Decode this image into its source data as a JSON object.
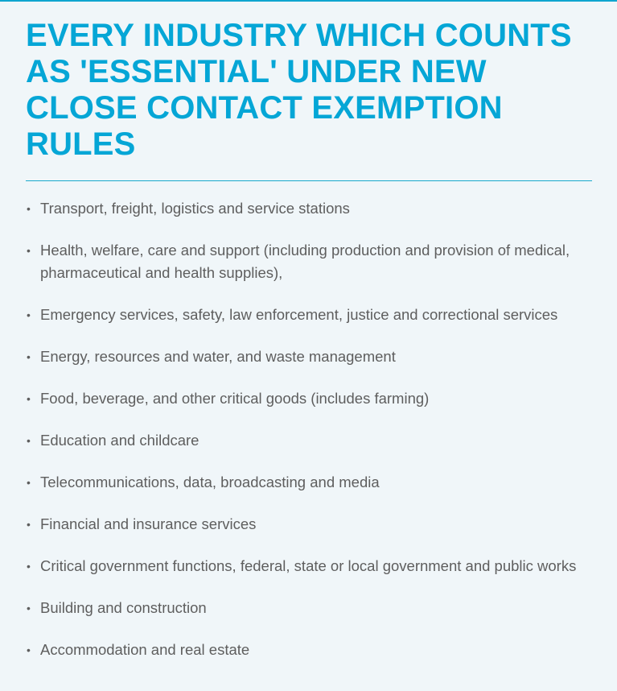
{
  "title": "EVERY INDUSTRY WHICH COUNTS AS 'ESSENTIAL' UNDER NEW CLOSE CONTACT EXEMPTION RULES",
  "items": [
    "Transport, freight, logistics and service stations",
    "Health, welfare, care and support (including production and provision of medical, pharmaceutical and health supplies),",
    "Emergency services, safety, law enforcement, justice and correctional services",
    "Energy, resources and water, and waste management",
    "Food, beverage, and other critical goods (includes farming)",
    "Education and childcare",
    "Telecommunications, data, broadcasting and media",
    "Financial and insurance services",
    "Critical government functions, federal, state or local government and public works",
    "Building and construction",
    "Accommodation and real estate"
  ],
  "colors": {
    "accent": "#05a6d6",
    "text": "#5e5e5e",
    "background": "#f0f6f9"
  }
}
